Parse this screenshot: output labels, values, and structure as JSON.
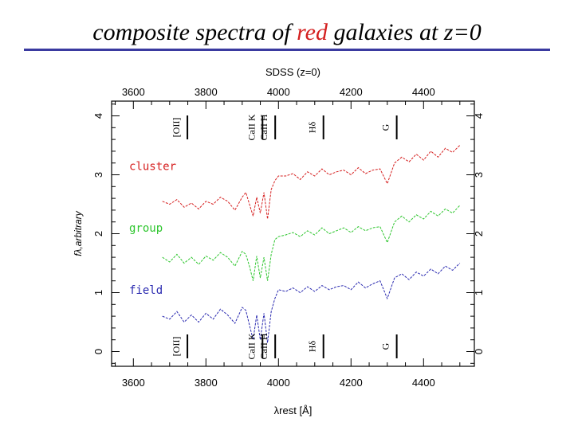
{
  "slide": {
    "title_before": "composite spectra of ",
    "title_highlight": "red",
    "title_after": " galaxies at z=0",
    "highlight_color": "#d42020"
  },
  "chart_data": {
    "type": "line",
    "title": "SDSS (z=0)",
    "xlabel": "λrest [Å]",
    "ylabel": "fλ,arbitrary",
    "xlim": [
      3540,
      4540
    ],
    "ylim": [
      -0.25,
      4.25
    ],
    "xticks": [
      3600,
      3800,
      4000,
      4200,
      4400
    ],
    "yticks": [
      0,
      1,
      2,
      3,
      4
    ],
    "lines": [
      {
        "label": "[OII]",
        "x": 3727
      },
      {
        "label": "CaII K",
        "x": 3934
      },
      {
        "label": "CaII H",
        "x": 3969
      },
      {
        "label": "Hδ",
        "x": 4102
      },
      {
        "label": "G",
        "x": 4304
      }
    ],
    "series": [
      {
        "name": "cluster",
        "color": "#d62020",
        "label_y": 3.15,
        "x": [
          3680,
          3700,
          3720,
          3740,
          3760,
          3780,
          3800,
          3820,
          3840,
          3860,
          3880,
          3900,
          3910,
          3920,
          3930,
          3940,
          3950,
          3960,
          3970,
          3980,
          3990,
          4000,
          4020,
          4040,
          4060,
          4080,
          4100,
          4120,
          4140,
          4160,
          4180,
          4200,
          4220,
          4240,
          4260,
          4280,
          4300,
          4320,
          4340,
          4360,
          4380,
          4400,
          4420,
          4440,
          4460,
          4480,
          4500
        ],
        "values": [
          2.55,
          2.5,
          2.58,
          2.45,
          2.52,
          2.42,
          2.55,
          2.5,
          2.62,
          2.55,
          2.4,
          2.62,
          2.7,
          2.5,
          2.3,
          2.62,
          2.35,
          2.7,
          2.25,
          2.75,
          2.9,
          2.98,
          2.98,
          3.02,
          2.92,
          3.05,
          2.98,
          3.1,
          3.0,
          3.05,
          3.08,
          3.0,
          3.12,
          3.02,
          3.08,
          3.1,
          2.85,
          3.2,
          3.3,
          3.22,
          3.35,
          3.25,
          3.4,
          3.3,
          3.45,
          3.38,
          3.5
        ]
      },
      {
        "name": "group",
        "color": "#2ec62e",
        "label_y": 2.1,
        "x": [
          3680,
          3700,
          3720,
          3740,
          3760,
          3780,
          3800,
          3820,
          3840,
          3860,
          3880,
          3900,
          3910,
          3920,
          3930,
          3940,
          3950,
          3960,
          3970,
          3980,
          3990,
          4000,
          4020,
          4040,
          4060,
          4080,
          4100,
          4120,
          4140,
          4160,
          4180,
          4200,
          4220,
          4240,
          4260,
          4280,
          4300,
          4320,
          4340,
          4360,
          4380,
          4400,
          4420,
          4440,
          4460,
          4480,
          4500
        ],
        "values": [
          1.6,
          1.52,
          1.65,
          1.5,
          1.6,
          1.48,
          1.62,
          1.55,
          1.68,
          1.6,
          1.45,
          1.7,
          1.65,
          1.45,
          1.2,
          1.62,
          1.25,
          1.6,
          1.2,
          1.65,
          1.9,
          1.95,
          1.98,
          2.02,
          1.95,
          2.05,
          1.98,
          2.1,
          2.0,
          2.05,
          2.1,
          2.02,
          2.12,
          2.05,
          2.1,
          2.12,
          1.85,
          2.2,
          2.3,
          2.2,
          2.32,
          2.25,
          2.38,
          2.3,
          2.42,
          2.35,
          2.48
        ]
      },
      {
        "name": "field",
        "color": "#2a2ab0",
        "label_y": 1.05,
        "x": [
          3680,
          3700,
          3720,
          3740,
          3760,
          3780,
          3800,
          3820,
          3840,
          3860,
          3880,
          3900,
          3910,
          3920,
          3930,
          3940,
          3950,
          3960,
          3970,
          3980,
          3990,
          4000,
          4020,
          4040,
          4060,
          4080,
          4100,
          4120,
          4140,
          4160,
          4180,
          4200,
          4220,
          4240,
          4260,
          4280,
          4300,
          4320,
          4340,
          4360,
          4380,
          4400,
          4420,
          4440,
          4460,
          4480,
          4500
        ],
        "values": [
          0.6,
          0.55,
          0.68,
          0.5,
          0.62,
          0.5,
          0.65,
          0.55,
          0.72,
          0.62,
          0.48,
          0.75,
          0.7,
          0.45,
          0.2,
          0.62,
          0.2,
          0.65,
          0.15,
          0.68,
          0.9,
          1.05,
          1.02,
          1.08,
          1.0,
          1.1,
          1.02,
          1.12,
          1.05,
          1.1,
          1.12,
          1.05,
          1.18,
          1.08,
          1.15,
          1.2,
          0.9,
          1.25,
          1.32,
          1.22,
          1.35,
          1.28,
          1.4,
          1.32,
          1.45,
          1.38,
          1.5
        ]
      }
    ]
  }
}
